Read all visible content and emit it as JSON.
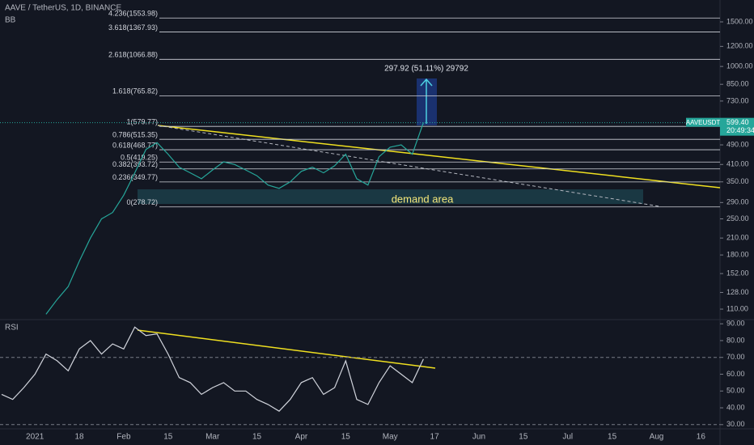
{
  "header": {
    "symbol": "AAVE / TetherUS, 1D, BINANCE",
    "indicator": "BB"
  },
  "chart_data": [
    {
      "type": "line",
      "log_scale": true,
      "color": "#26a69a",
      "categories": [
        null,
        null,
        null,
        "2021",
        null,
        null,
        null,
        "18",
        null,
        null,
        null,
        "Feb",
        null,
        null,
        null,
        "15",
        null,
        null,
        null,
        "Mar",
        null,
        null,
        null,
        "15",
        null,
        null,
        null,
        "Apr",
        null,
        null,
        null,
        "15",
        null,
        null,
        null,
        "May",
        null,
        null,
        null,
        "17",
        null,
        null,
        null,
        "Jun",
        null,
        null,
        null,
        "15",
        null,
        null,
        null,
        "Jul",
        null,
        null,
        null,
        "15",
        null,
        null,
        null,
        "Aug",
        null,
        null,
        null,
        "16",
        null,
        null,
        null
      ],
      "values": [
        null,
        null,
        null,
        null,
        105,
        120,
        135,
        170,
        210,
        250,
        265,
        310,
        380,
        470,
        500,
        450,
        400,
        380,
        360,
        390,
        420,
        410,
        390,
        370,
        340,
        330,
        350,
        385,
        400,
        380,
        405,
        450,
        360,
        340,
        440,
        480,
        490,
        450,
        600,
        null,
        null,
        null,
        null,
        null,
        null,
        null,
        null,
        null,
        null,
        null,
        null,
        null,
        null,
        null,
        null,
        null,
        null,
        null,
        null,
        null,
        null,
        null,
        null,
        null,
        null,
        null,
        null
      ],
      "ylim": [
        100,
        1830
      ],
      "yticks": [
        {
          "value": 1500,
          "label": "1500.00"
        },
        {
          "value": 1200,
          "label": "1200.00"
        },
        {
          "value": 1000,
          "label": "1000.00"
        },
        {
          "value": 850,
          "label": "850.00"
        },
        {
          "value": 730,
          "label": "730.00"
        },
        {
          "value": 490,
          "label": "490.00"
        },
        {
          "value": 410,
          "label": "410.00"
        },
        {
          "value": 350,
          "label": "350.00"
        },
        {
          "value": 290,
          "label": "290.00"
        },
        {
          "value": 250,
          "label": "250.00"
        },
        {
          "value": 210,
          "label": "210.00"
        },
        {
          "value": 180,
          "label": "180.00"
        },
        {
          "value": 152,
          "label": "152.00"
        },
        {
          "value": 128,
          "label": "128.00"
        },
        {
          "value": 110,
          "label": "110.00"
        }
      ],
      "fib_levels": [
        {
          "value": 1553.98,
          "label": "4.236(1553.98)"
        },
        {
          "value": 1367.93,
          "label": "3.618(1367.93)"
        },
        {
          "value": 1066.88,
          "label": "2.618(1066.88)"
        },
        {
          "value": 765.82,
          "label": "1.618(765.82)"
        },
        {
          "value": 579.77,
          "label": "1(579.77)"
        },
        {
          "value": 515.35,
          "label": "0.786(515.35)"
        },
        {
          "value": 468.77,
          "label": "0.618(468.77)"
        },
        {
          "value": 419.25,
          "label": "0.5(419.25)"
        },
        {
          "value": 393.72,
          "label": "0.382(393.72)"
        },
        {
          "value": 349.77,
          "label": "0.236(349.77)"
        },
        {
          "value": 278.72,
          "label": "0(278.72)"
        }
      ],
      "demand_label": "demand area",
      "projection_label": "297.92 (51.11%) 29792",
      "price_tag": {
        "symbol": "AAVEUSDT",
        "price": {
          "value": 599.4,
          "label": "599.40"
        },
        "countdown": "20:49:34"
      }
    },
    {
      "type": "line",
      "title": "RSI",
      "color": "#d1d4dc",
      "values": [
        48,
        45,
        52,
        60,
        72,
        68,
        62,
        75,
        80,
        72,
        78,
        75,
        88,
        83,
        84,
        72,
        58,
        55,
        48,
        52,
        55,
        50,
        50,
        45,
        42,
        38,
        45,
        55,
        58,
        48,
        52,
        68,
        45,
        42,
        55,
        65,
        60,
        55,
        69,
        null,
        null,
        null,
        null,
        null,
        null,
        null,
        null,
        null,
        null,
        null,
        null,
        null,
        null,
        null,
        null,
        null,
        null,
        null,
        null,
        null,
        null,
        null,
        null,
        null,
        null,
        null,
        null
      ],
      "ylim": [
        27.5,
        92.5
      ],
      "yticks": [
        {
          "value": 90,
          "label": "90.00"
        },
        {
          "value": 80,
          "label": "80.00"
        },
        {
          "value": 70,
          "label": "70.00"
        },
        {
          "value": 60,
          "label": "60.00"
        },
        {
          "value": 50,
          "label": "50.00"
        },
        {
          "value": 40,
          "label": "40.00"
        },
        {
          "value": 30,
          "label": "30.00"
        }
      ],
      "bands": [
        70,
        30
      ]
    }
  ]
}
